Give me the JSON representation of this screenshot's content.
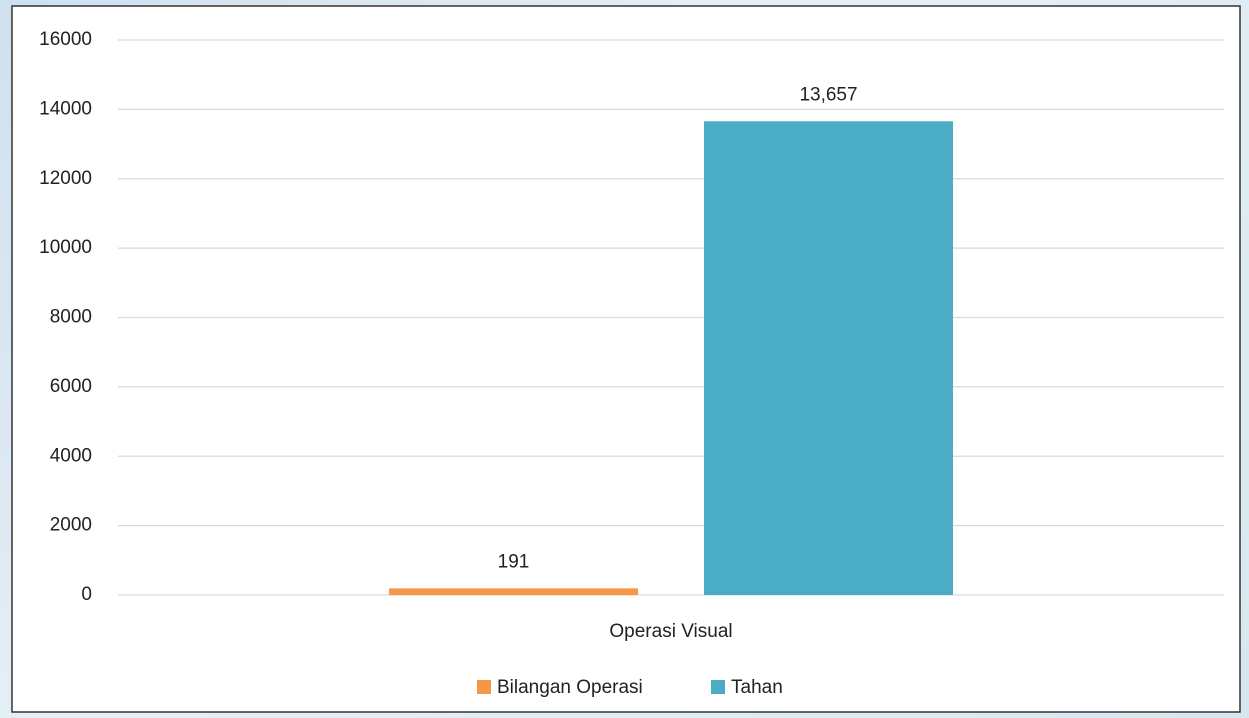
{
  "chart_data": {
    "type": "bar",
    "categories": [
      "Operasi Visual"
    ],
    "series": [
      {
        "name": "Bilangan Operasi",
        "color": "#f79646",
        "values": [
          191
        ]
      },
      {
        "name": "Tahan",
        "color": "#4bacc6",
        "values": [
          13657
        ],
        "value_labels": [
          "13,657"
        ]
      }
    ],
    "ylim": [
      0,
      16000
    ],
    "yticks": [
      0,
      2000,
      4000,
      6000,
      8000,
      10000,
      12000,
      14000,
      16000
    ],
    "grid": true,
    "legend": "bottom"
  }
}
